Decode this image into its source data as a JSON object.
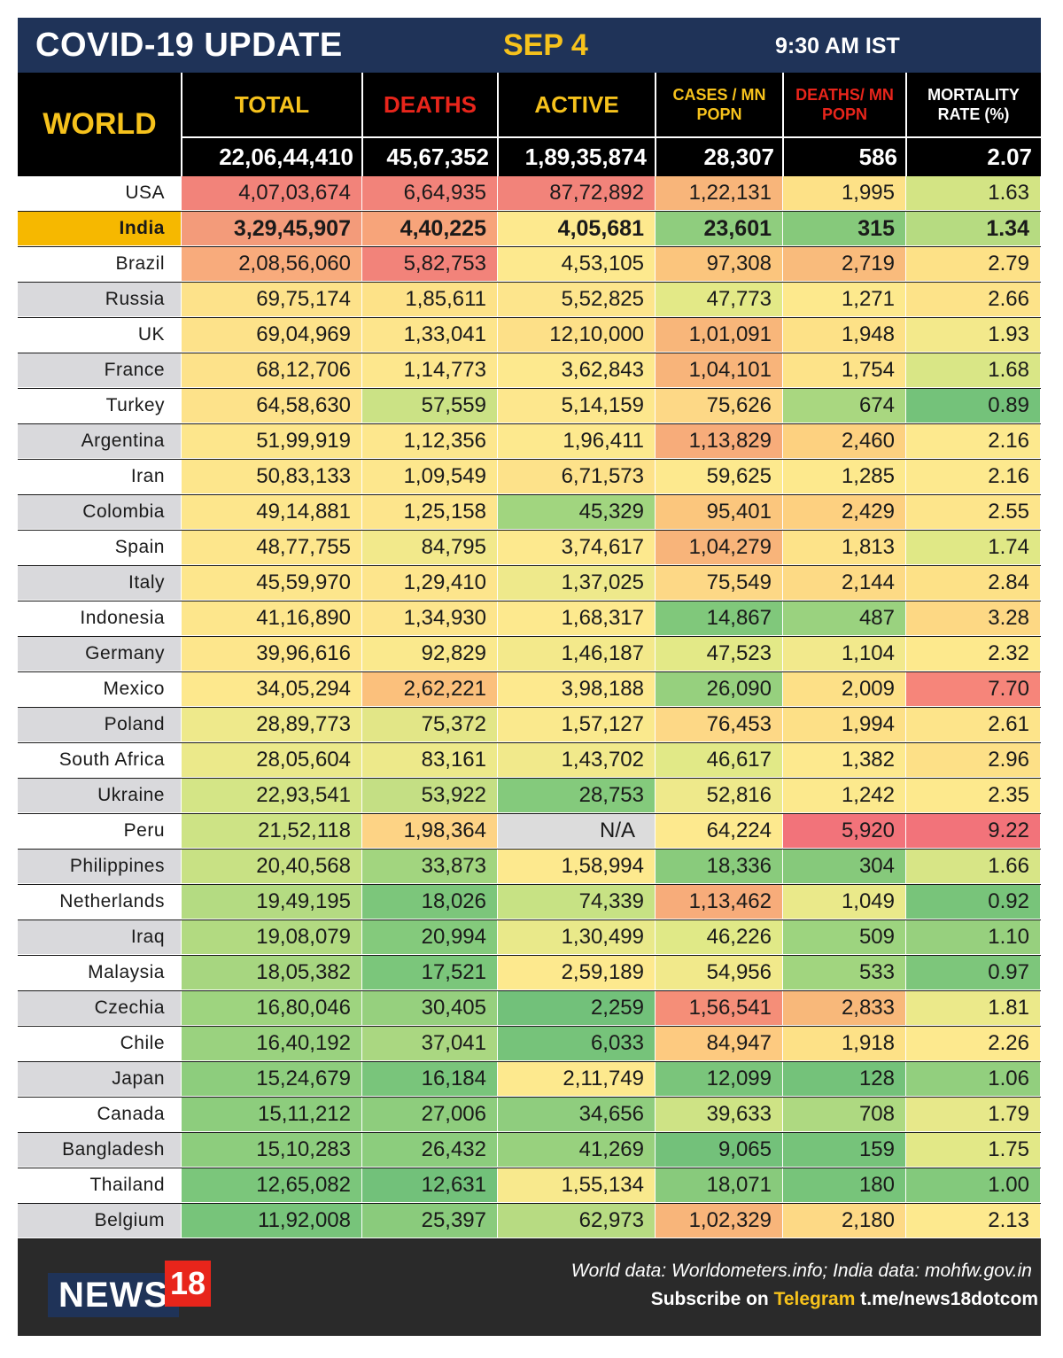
{
  "header": {
    "title": "COVID-19 UPDATE",
    "date": "SEP 4",
    "time": "9:30 AM IST"
  },
  "world_label": "WORLD",
  "columns": [
    {
      "label": "TOTAL",
      "color": "#f6c21c"
    },
    {
      "label": "DEATHS",
      "color": "#e8251b"
    },
    {
      "label": "ACTIVE",
      "color": "#f6c21c"
    },
    {
      "label": "CASES / MN POPN",
      "color": "#f6c21c"
    },
    {
      "label": "DEATHS/ MN POPN",
      "color": "#e8251b"
    },
    {
      "label": "MORTALITY RATE (%)",
      "color": "#ffffff"
    }
  ],
  "world_totals": [
    "22,06,44,410",
    "45,67,352",
    "1,89,35,874",
    "28,307",
    "586",
    "2.07"
  ],
  "rows": [
    {
      "country": "USA",
      "values": [
        "4,07,03,674",
        "6,64,935",
        "87,72,892",
        "1,22,131",
        "1,995",
        "1.63"
      ],
      "colors": [
        "#f2837a",
        "#f2837a",
        "#f2837a",
        "#f8b57a",
        "#fde187",
        "#d3e484"
      ]
    },
    {
      "country": "India",
      "values": [
        "3,29,45,907",
        "4,40,225",
        "4,05,681",
        "23,601",
        "315",
        "1.34"
      ],
      "colors": [
        "#f39b7a",
        "#f7a47a",
        "#fde98e",
        "#8fcd7e",
        "#86c97b",
        "#b6db81"
      ]
    },
    {
      "country": "Brazil",
      "values": [
        "2,08,56,060",
        "5,82,753",
        "4,53,105",
        "97,308",
        "2,719",
        "2.79"
      ],
      "colors": [
        "#f8ab7c",
        "#f2837a",
        "#fde98e",
        "#fbc57d",
        "#f9bb7c",
        "#fde187"
      ]
    },
    {
      "country": "Russia",
      "values": [
        "69,75,174",
        "1,85,611",
        "5,52,825",
        "47,773",
        "1,271",
        "2.66"
      ],
      "colors": [
        "#fde28a",
        "#fde288",
        "#fde58c",
        "#e3e987",
        "#fde98d",
        "#fde389"
      ]
    },
    {
      "country": "UK",
      "values": [
        "69,04,969",
        "1,33,041",
        "12,10,000",
        "1,01,091",
        "1,948",
        "1.93"
      ],
      "colors": [
        "#fde28a",
        "#fde58c",
        "#fde088",
        "#f8b67a",
        "#fde187",
        "#f3e98b"
      ]
    },
    {
      "country": "France",
      "values": [
        "68,12,706",
        "1,14,773",
        "3,62,843",
        "1,04,101",
        "1,754",
        "1.68"
      ],
      "colors": [
        "#fde28a",
        "#fde78d",
        "#fde98e",
        "#f8b47a",
        "#fde389",
        "#d9e686"
      ]
    },
    {
      "country": "Turkey",
      "values": [
        "64,58,630",
        "57,559",
        "5,14,159",
        "75,626",
        "674",
        "0.89"
      ],
      "colors": [
        "#fde28a",
        "#cbe285",
        "#fde78d",
        "#fdd886",
        "#a9d780",
        "#74c27a"
      ]
    },
    {
      "country": "Argentina",
      "values": [
        "51,99,919",
        "1,12,356",
        "1,96,411",
        "1,13,829",
        "2,460",
        "2.16"
      ],
      "colors": [
        "#fde68c",
        "#fde78d",
        "#fde98e",
        "#f7ac7a",
        "#fdd180",
        "#fde98e"
      ]
    },
    {
      "country": "Iran",
      "values": [
        "50,83,133",
        "1,09,549",
        "6,71,573",
        "59,625",
        "1,285",
        "2.16"
      ],
      "colors": [
        "#fde68c",
        "#fde78d",
        "#fde28a",
        "#fde98e",
        "#fde98d",
        "#fde98e"
      ]
    },
    {
      "country": "Colombia",
      "values": [
        "49,14,881",
        "1,25,158",
        "45,329",
        "95,401",
        "2,429",
        "2.55"
      ],
      "colors": [
        "#fde68c",
        "#fde58c",
        "#a1d57f",
        "#fbc67d",
        "#fdd080",
        "#fde58b"
      ]
    },
    {
      "country": "Spain",
      "values": [
        "48,77,755",
        "84,795",
        "3,74,617",
        "1,04,279",
        "1,813",
        "1.74"
      ],
      "colors": [
        "#fde68c",
        "#f2e98b",
        "#fde98e",
        "#f8b47a",
        "#fde389",
        "#e0e886"
      ]
    },
    {
      "country": "Italy",
      "values": [
        "45,59,970",
        "1,29,410",
        "1,37,025",
        "75,549",
        "2,144",
        "2.84"
      ],
      "colors": [
        "#fde68c",
        "#fde58c",
        "#eee98b",
        "#fdd886",
        "#fdda85",
        "#fde187"
      ]
    },
    {
      "country": "Indonesia",
      "values": [
        "41,16,890",
        "1,34,930",
        "1,68,317",
        "14,867",
        "487",
        "3.28"
      ],
      "colors": [
        "#fde68c",
        "#fde58c",
        "#fde98e",
        "#80c87b",
        "#9ad27f",
        "#fdd884"
      ]
    },
    {
      "country": "Germany",
      "values": [
        "39,96,616",
        "92,829",
        "1,46,187",
        "47,523",
        "1,104",
        "2.32"
      ],
      "colors": [
        "#fde68c",
        "#fae98d",
        "#f3e98b",
        "#e3e987",
        "#f2e98c",
        "#fde98d"
      ]
    },
    {
      "country": "Mexico",
      "values": [
        "34,05,294",
        "2,62,221",
        "3,98,188",
        "26,090",
        "2,009",
        "7.70"
      ],
      "colors": [
        "#fde88d",
        "#fbc07c",
        "#fde98e",
        "#96d07e",
        "#fde087",
        "#f6857a"
      ]
    },
    {
      "country": "Poland",
      "values": [
        "28,89,773",
        "75,372",
        "1,57,127",
        "76,453",
        "1,994",
        "2.61"
      ],
      "colors": [
        "#eee98b",
        "#e2e687",
        "#fae98d",
        "#fdd886",
        "#fde087",
        "#fde48a"
      ]
    },
    {
      "country": "South Africa",
      "values": [
        "28,05,604",
        "83,161",
        "1,43,702",
        "46,617",
        "1,382",
        "2.96"
      ],
      "colors": [
        "#ebe98a",
        "#ede98a",
        "#f1e98b",
        "#e1e987",
        "#fde98e",
        "#fde087"
      ]
    },
    {
      "country": "Ukraine",
      "values": [
        "22,93,541",
        "53,922",
        "28,753",
        "52,816",
        "1,242",
        "2.35"
      ],
      "colors": [
        "#d4e586",
        "#c4df84",
        "#84ca7c",
        "#eee98b",
        "#fce98d",
        "#fde98d"
      ]
    },
    {
      "country": "Peru",
      "values": [
        "21,52,118",
        "1,98,364",
        "N/A",
        "64,224",
        "5,920",
        "9.22"
      ],
      "colors": [
        "#cde385",
        "#fdd385",
        "#dcdcdc",
        "#fde98e",
        "#f2737a",
        "#f2737a"
      ]
    },
    {
      "country": "Philippines",
      "values": [
        "20,40,568",
        "33,873",
        "1,58,994",
        "18,336",
        "304",
        "1.66"
      ],
      "colors": [
        "#c8e184",
        "#a2d57f",
        "#fde98e",
        "#89cb7c",
        "#86c97b",
        "#d7e586"
      ]
    },
    {
      "country": "Netherlands",
      "values": [
        "19,49,195",
        "18,026",
        "74,339",
        "1,13,462",
        "1,049",
        "0.92"
      ],
      "colors": [
        "#b4db82",
        "#7cc67b",
        "#c7e284",
        "#f7ac7a",
        "#eae98a",
        "#78c47a"
      ]
    },
    {
      "country": "Iraq",
      "values": [
        "19,08,079",
        "20,994",
        "1,30,499",
        "46,226",
        "509",
        "1.10"
      ],
      "colors": [
        "#b2da81",
        "#84ca7c",
        "#e9e98a",
        "#e0e987",
        "#9dd47f",
        "#97d07e"
      ]
    },
    {
      "country": "Malaysia",
      "values": [
        "18,05,382",
        "17,521",
        "2,59,189",
        "54,956",
        "533",
        "0.97"
      ],
      "colors": [
        "#a7d680",
        "#7bc67b",
        "#fde98e",
        "#f1e98b",
        "#a1d57f",
        "#7dc67b"
      ]
    },
    {
      "country": "Czechia",
      "values": [
        "16,80,046",
        "30,405",
        "2,259",
        "1,56,541",
        "2,833",
        "1.81"
      ],
      "colors": [
        "#9ed47f",
        "#96d07e",
        "#72c17a",
        "#f58e78",
        "#f8b87a",
        "#ebe98a"
      ]
    },
    {
      "country": "Chile",
      "values": [
        "16,40,192",
        "37,041",
        "6,033",
        "84,947",
        "1,918",
        "2.26"
      ],
      "colors": [
        "#9ad27f",
        "#aad781",
        "#76c37a",
        "#fdca80",
        "#fde187",
        "#fde98e"
      ]
    },
    {
      "country": "Japan",
      "values": [
        "15,24,679",
        "16,184",
        "2,11,749",
        "12,099",
        "128",
        "1.06"
      ],
      "colors": [
        "#8dcd7d",
        "#79c57b",
        "#fde98e",
        "#7ac57b",
        "#74c27a",
        "#92cf7e"
      ]
    },
    {
      "country": "Canada",
      "values": [
        "15,11,212",
        "27,006",
        "34,656",
        "39,633",
        "708",
        "1.79"
      ],
      "colors": [
        "#8dcd7d",
        "#8ecd7d",
        "#8fcd7e",
        "#cee385",
        "#aed981",
        "#e7e88a"
      ]
    },
    {
      "country": "Bangladesh",
      "values": [
        "15,10,283",
        "26,432",
        "41,269",
        "9,065",
        "159",
        "1.75"
      ],
      "colors": [
        "#8dcd7d",
        "#8ccd7d",
        "#98d17e",
        "#73c17a",
        "#76c37a",
        "#e2e887"
      ]
    },
    {
      "country": "Thailand",
      "values": [
        "12,65,082",
        "12,631",
        "1,55,134",
        "18,071",
        "180",
        "1.00"
      ],
      "colors": [
        "#7bc67b",
        "#72c17a",
        "#f8e98d",
        "#88ca7c",
        "#77c47a",
        "#83c97c"
      ]
    },
    {
      "country": "Belgium",
      "values": [
        "11,92,008",
        "25,397",
        "62,973",
        "1,02,329",
        "2,180",
        "2.13"
      ],
      "colors": [
        "#77c47a",
        "#8acb7c",
        "#b7db82",
        "#f8b57a",
        "#fdd985",
        "#fde98e"
      ]
    }
  ],
  "footer": {
    "logo_text": "NEWS",
    "logo_number": "18",
    "source": "World data: Worldometers.info; India data: mohfw.gov.in",
    "subscribe_prefix": "Subscribe on",
    "subscribe_platform": "Telegram",
    "subscribe_link": "t.me/news18dotcom"
  },
  "colors": {
    "title_bg": "#1f3358",
    "accent_yellow": "#f6c21c",
    "accent_red": "#e8251b",
    "india_highlight": "#f6b800",
    "alt_row_country": "#d9d9dc"
  }
}
